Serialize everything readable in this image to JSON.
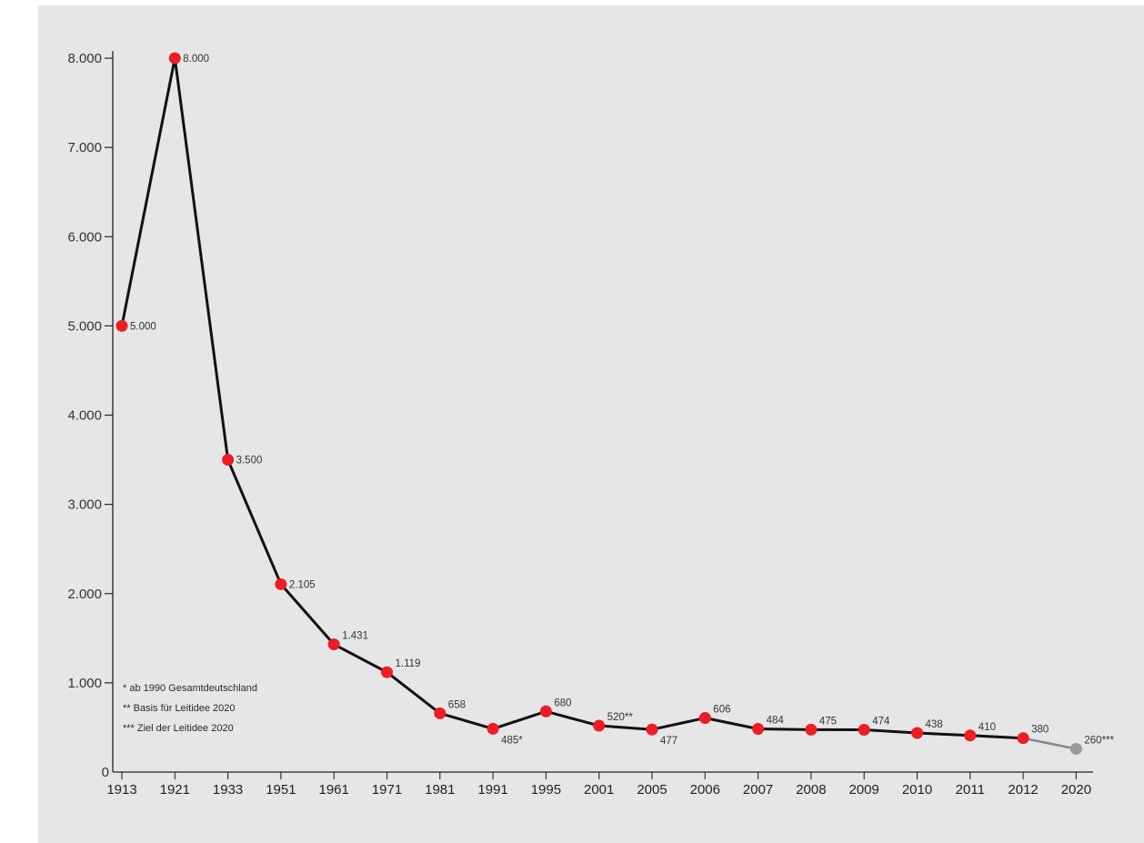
{
  "chart_data": {
    "type": "line",
    "title": "",
    "xlabel": "",
    "ylabel": "",
    "categories": [
      "1913",
      "1921",
      "1933",
      "1951",
      "1961",
      "1971",
      "1981",
      "1991",
      "1995",
      "2001",
      "2005",
      "2006",
      "2007",
      "2008",
      "2009",
      "2010",
      "2011",
      "2012",
      "2020"
    ],
    "values": [
      5000,
      8000,
      3500,
      2105,
      1431,
      1119,
      658,
      485,
      680,
      520,
      477,
      606,
      484,
      475,
      474,
      438,
      410,
      380,
      260
    ],
    "value_labels": [
      "5.000",
      "8.000",
      "3.500",
      "2.105",
      "1.431",
      "1.119",
      "658",
      "485*",
      "680",
      "520**",
      "477",
      "606",
      "484",
      "475",
      "474",
      "438",
      "410",
      "380",
      "260***"
    ],
    "highlight_last_as_target": true,
    "ylim": [
      0,
      8000
    ],
    "yticks": [
      0,
      1000,
      2000,
      3000,
      4000,
      5000,
      6000,
      7000,
      8000
    ],
    "ytick_labels": [
      "0",
      "1.000",
      "2.000",
      "3.000",
      "4.000",
      "5.000",
      "6.000",
      "7.000",
      "8.000"
    ],
    "grid": false,
    "colors": {
      "line": "#111111",
      "marker": "#ee1c24",
      "target_marker": "#999999",
      "target_line": "#888888",
      "background": "#e6e6e6"
    },
    "legend_position": "bottom-left",
    "notes": [
      "* ab 1990 Gesamtdeutschland",
      "** Basis für Leitidee 2020",
      "*** Ziel der Leitidee 2020"
    ]
  }
}
